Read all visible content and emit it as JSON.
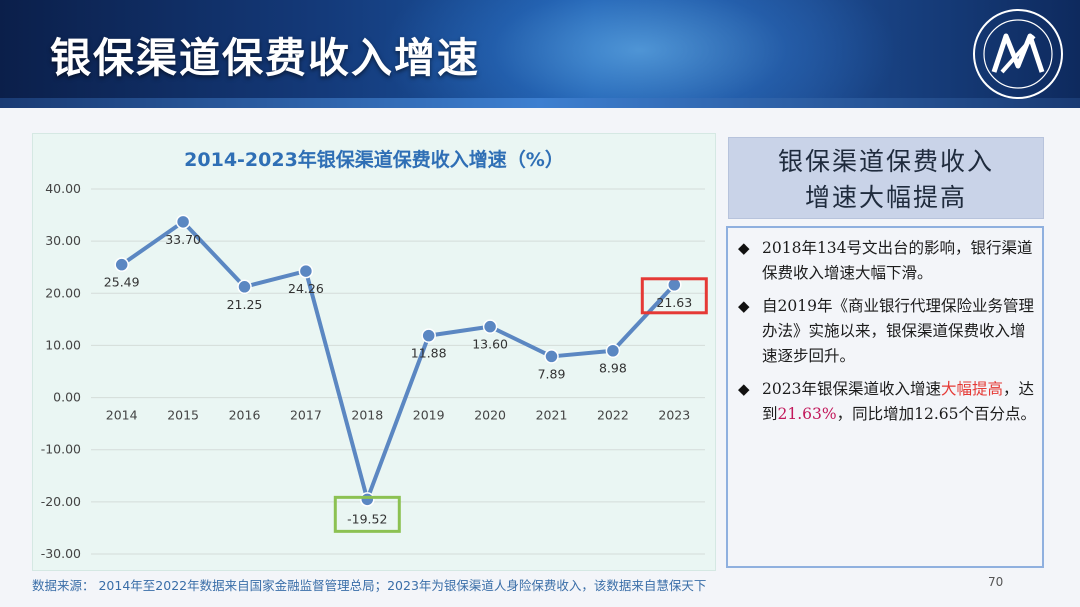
{
  "header": {
    "title": "银保渠道保费收入增速"
  },
  "chart_data": {
    "type": "line",
    "title": "2014-2023年银保渠道保费收入增速（%）",
    "categories": [
      "2014",
      "2015",
      "2016",
      "2017",
      "2018",
      "2019",
      "2020",
      "2021",
      "2022",
      "2023"
    ],
    "values": [
      25.49,
      33.7,
      21.25,
      24.26,
      -19.52,
      11.88,
      13.6,
      7.89,
      8.98,
      21.63
    ],
    "labels": [
      "25.49",
      "33.70",
      "21.25",
      "24.26",
      "-19.52",
      "11.88",
      "13.60",
      "7.89",
      "8.98",
      "21.63"
    ],
    "ylim": [
      -30,
      40
    ],
    "yticks": [
      "40.00",
      "30.00",
      "20.00",
      "10.00",
      "0.00",
      "-10.00",
      "-20.00",
      "-30.00"
    ],
    "ytick_values": [
      40,
      30,
      20,
      10,
      0,
      -10,
      -20,
      -30
    ],
    "grid": true,
    "legend": "none",
    "line_color": "#5b87c2",
    "highlights": [
      {
        "category": "2018",
        "color": "#8cc152"
      },
      {
        "category": "2023",
        "color": "#e53935"
      }
    ]
  },
  "side": {
    "title_line1": "银保渠道保费收入",
    "title_line2": "增速大幅提高",
    "bullet1": "2018年134号文出台的影响，银行渠道保费收入增速大幅下滑。",
    "bullet2": "自2019年《商业银行代理保险业务管理办法》实施以来，银保渠道保费收入增速逐步回升。",
    "bullet3_a": "2023年银保渠道收入增速",
    "bullet3_hl": "大幅提高",
    "bullet3_b": "，达到",
    "bullet3_pct": "21.63%",
    "bullet3_c": "，同比增加12.65个百分点。",
    "bullet_glyph": "◆"
  },
  "footer": {
    "source": "数据来源：   2014年至2022年数据来自国家金融监督管理总局；2023年为银保渠道人身险保费收入，该数据来自慧保天下",
    "page": "70"
  },
  "colors": {
    "accent": "#2f6fb5",
    "title_bg": "#c9d3e8",
    "box_border": "#8fb0df"
  }
}
